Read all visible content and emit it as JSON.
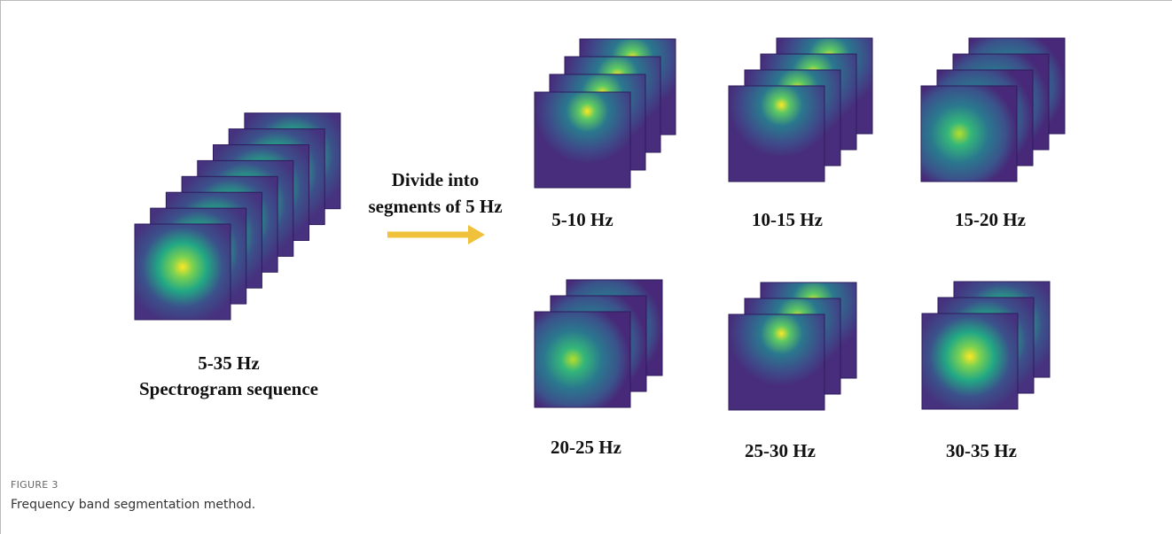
{
  "figure": {
    "input_label": [
      "5-35 Hz",
      "Spectrogram sequence"
    ],
    "arrow_label": [
      "Divide into",
      "segments of 5 Hz"
    ],
    "bands": [
      "5-10 Hz",
      "10-15 Hz",
      "15-20 Hz",
      "20-25 Hz",
      "25-30 Hz",
      "30-35 Hz"
    ],
    "caption_label": "FIGURE 3",
    "caption": "Frequency band segmentation method."
  }
}
